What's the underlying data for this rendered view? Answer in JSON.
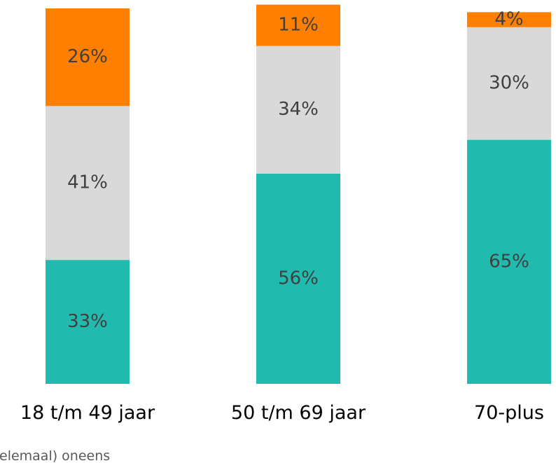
{
  "chart_data": {
    "type": "bar",
    "stacked": true,
    "categories": [
      "18 t/m 49 jaar",
      "50 t/m 69 jaar",
      "70-plus"
    ],
    "series": [
      {
        "color": "#20bbae",
        "values": [
          33,
          56,
          65
        ],
        "labels": [
          "33%",
          "56%",
          "65%"
        ]
      },
      {
        "color": "#d9d9d9",
        "values": [
          41,
          34,
          30
        ],
        "labels": [
          "41%",
          "34%",
          "30%"
        ]
      },
      {
        "color": "#ff7f00",
        "values": [
          26,
          11,
          4
        ],
        "labels": [
          "26%",
          "11%",
          "4%"
        ]
      }
    ],
    "ylim": [
      0,
      100
    ],
    "legend": {
      "placement": "bottom",
      "text": "elemaal) oneens"
    }
  }
}
